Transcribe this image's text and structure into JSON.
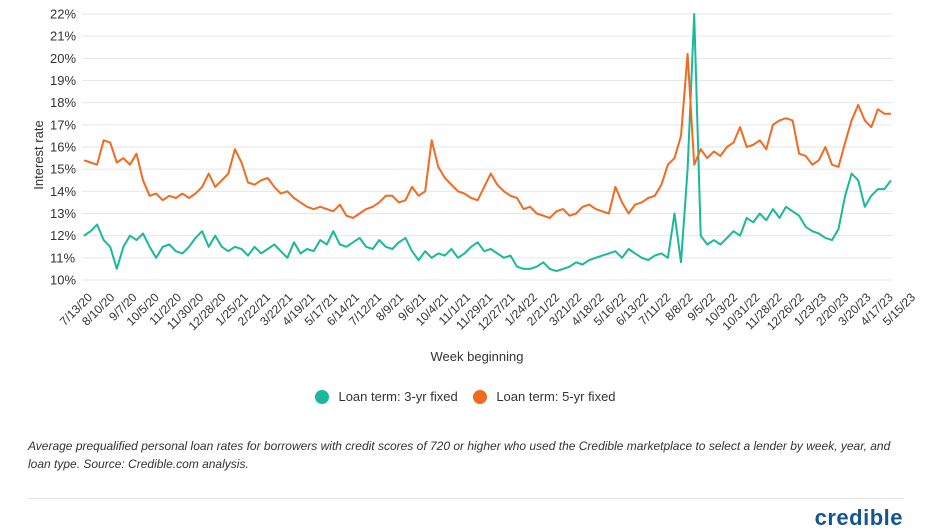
{
  "chart_data": {
    "type": "line",
    "ylabel": "Interest rate",
    "xlabel": "Week beginning",
    "ylim": [
      10,
      22
    ],
    "yticks": [
      "22%",
      "21%",
      "20%",
      "19%",
      "18%",
      "17%",
      "16%",
      "15%",
      "14%",
      "13%",
      "12%",
      "11%",
      "10%"
    ],
    "xticks": [
      "7/13/20",
      "8/10/20",
      "9/7/20",
      "10/5/20",
      "11/2/20",
      "11/30/20",
      "12/28/20",
      "1/25/21",
      "2/22/21",
      "3/22/21",
      "4/19/21",
      "5/17/21",
      "6/14/21",
      "7/12/21",
      "8/9/21",
      "9/6/21",
      "10/4/21",
      "11/1/21",
      "11/29/21",
      "12/27/21",
      "1/24/22",
      "2/21/22",
      "3/21/22",
      "4/18/22",
      "5/16/22",
      "6/13/22",
      "7/11/22",
      "8/8/22",
      "9/5/22",
      "10/3/22",
      "10/31/22",
      "11/28/22",
      "12/26/22",
      "1/23/23",
      "2/20/23",
      "3/20/23",
      "4/17/23",
      "5/15/23"
    ],
    "legend_placement": "bottom",
    "grid": "horizontal",
    "series": [
      {
        "name": "Loan term: 3-yr fixed",
        "color": "#19b99a",
        "values": [
          12.0,
          12.2,
          12.5,
          11.8,
          11.5,
          10.5,
          11.5,
          12.0,
          11.8,
          12.1,
          11.5,
          11.0,
          11.5,
          11.6,
          11.3,
          11.2,
          11.5,
          11.9,
          12.2,
          11.5,
          12.0,
          11.5,
          11.3,
          11.5,
          11.4,
          11.1,
          11.5,
          11.2,
          11.4,
          11.6,
          11.3,
          11.0,
          11.7,
          11.2,
          11.4,
          11.3,
          11.8,
          11.6,
          12.2,
          11.6,
          11.5,
          11.7,
          11.9,
          11.5,
          11.4,
          11.8,
          11.5,
          11.4,
          11.7,
          11.9,
          11.3,
          10.9,
          11.3,
          11.0,
          11.2,
          11.1,
          11.4,
          11.0,
          11.2,
          11.5,
          11.7,
          11.3,
          11.4,
          11.2,
          11.0,
          11.1,
          10.6,
          10.5,
          10.5,
          10.6,
          10.8,
          10.5,
          10.4,
          10.5,
          10.6,
          10.8,
          10.7,
          10.9,
          11.0,
          11.1,
          11.2,
          11.3,
          11.0,
          11.4,
          11.2,
          11.0,
          10.9,
          11.1,
          11.2,
          11.0,
          13.0,
          10.8,
          15.0,
          22.0,
          12.0,
          11.6,
          11.8,
          11.6,
          11.9,
          12.2,
          12.0,
          12.8,
          12.6,
          13.0,
          12.7,
          13.2,
          12.8,
          13.3,
          13.1,
          12.9,
          12.4,
          12.2,
          12.1,
          11.9,
          11.8,
          12.3,
          13.8,
          14.8,
          14.5,
          13.3,
          13.8,
          14.1,
          14.1,
          14.5
        ]
      },
      {
        "name": "Loan term: 5-yr fixed",
        "color": "#f26a21",
        "values": [
          15.4,
          15.3,
          15.2,
          16.3,
          16.2,
          15.3,
          15.5,
          15.2,
          15.7,
          14.5,
          13.8,
          13.9,
          13.6,
          13.8,
          13.7,
          13.9,
          13.7,
          13.9,
          14.2,
          14.8,
          14.2,
          14.5,
          14.8,
          15.9,
          15.3,
          14.4,
          14.3,
          14.5,
          14.6,
          14.2,
          13.9,
          14.0,
          13.7,
          13.5,
          13.3,
          13.2,
          13.3,
          13.2,
          13.1,
          13.4,
          12.9,
          12.8,
          13.0,
          13.2,
          13.3,
          13.5,
          13.8,
          13.8,
          13.5,
          13.6,
          14.2,
          13.8,
          14.0,
          16.3,
          15.1,
          14.6,
          14.3,
          14.0,
          13.9,
          13.7,
          13.6,
          14.2,
          14.8,
          14.3,
          14.0,
          13.8,
          13.7,
          13.2,
          13.3,
          13.0,
          12.9,
          12.8,
          13.1,
          13.2,
          12.9,
          13.0,
          13.3,
          13.4,
          13.2,
          13.1,
          13.0,
          14.2,
          13.5,
          13.0,
          13.4,
          13.5,
          13.7,
          13.8,
          14.3,
          15.2,
          15.5,
          16.5,
          20.2,
          15.2,
          15.9,
          15.5,
          15.8,
          15.6,
          16.0,
          16.2,
          16.9,
          16.0,
          16.1,
          16.3,
          15.9,
          17.0,
          17.2,
          17.3,
          17.2,
          15.7,
          15.6,
          15.2,
          15.4,
          16.0,
          15.2,
          15.1,
          16.2,
          17.2,
          17.9,
          17.2,
          16.9,
          17.7,
          17.5,
          17.5
        ]
      }
    ]
  },
  "caption": "Average prequalified personal loan rates for borrowers with credit scores of 720 or higher who used the Credible marketplace to select a lender by week, year, and loan type. Source: Credible.com analysis.",
  "logo_text": "credible"
}
